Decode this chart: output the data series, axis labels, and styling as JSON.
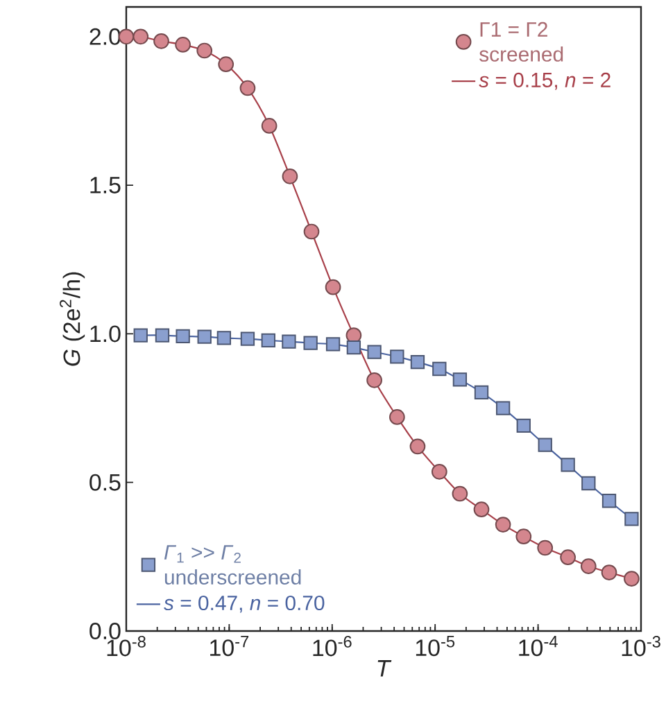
{
  "chart_data": {
    "type": "scatter",
    "xlabel": "*T*",
    "ylabel": "*G* (2e$^{2}$/h)",
    "log": "x",
    "xlim": [
      1e-08,
      0.001
    ],
    "ylim": [
      0,
      2.1
    ],
    "xticks": [
      {
        "value": 1e-08,
        "label": "10$^{-8}$"
      },
      {
        "value": 1e-07,
        "label": "10$^{-7}$"
      },
      {
        "value": 1e-06,
        "label": "10$^{-6}$"
      },
      {
        "value": 1e-05,
        "label": "10$^{-5}$"
      },
      {
        "value": 0.0001,
        "label": "10$^{-4}$"
      },
      {
        "value": 0.001,
        "label": "10$^{-3}$"
      }
    ],
    "yticks": [
      {
        "value": 0,
        "label": "0.0"
      },
      {
        "value": 0.5,
        "label": "0.5"
      },
      {
        "value": 1,
        "label": "1.0"
      },
      {
        "value": 1.5,
        "label": "1.5"
      },
      {
        "value": 2,
        "label": "2.0"
      }
    ],
    "legend": "top right",
    "grid": false,
    "series": [
      {
        "name": "Γ1 = Γ2 screened",
        "marker": "circle",
        "color": "#d4868e",
        "x": [
          1e-08,
          1.38e-08,
          2.19e-08,
          3.55e-08,
          5.75e-08,
          9.3e-08,
          1.51e-07,
          2.45e-07,
          3.89e-07,
          6.3e-07,
          1.02e-06,
          1.62e-06,
          2.57e-06,
          4.27e-06,
          6.76e-06,
          1.1e-05,
          1.74e-05,
          2.82e-05,
          4.57e-05,
          7.24e-05,
          0.000117,
          0.000195,
          0.000309,
          0.00049,
          0.00081
        ],
        "values": [
          2.0,
          2.0,
          1.985,
          1.973,
          1.953,
          1.907,
          1.827,
          1.7,
          1.53,
          1.344,
          1.157,
          0.995,
          0.844,
          0.72,
          0.621,
          0.536,
          0.462,
          0.409,
          0.358,
          0.318,
          0.28,
          0.248,
          0.218,
          0.197,
          0.176
        ]
      },
      {
        "name": "*s* = 0.15, *n* = 2",
        "type": "line",
        "marker": "none",
        "color": "#a8404a",
        "x": [
          1e-08,
          1.38e-08,
          2.19e-08,
          3.55e-08,
          5.75e-08,
          9.3e-08,
          1.51e-07,
          2.45e-07,
          3.89e-07,
          6.3e-07,
          1.02e-06,
          1.62e-06,
          2.57e-06,
          4.27e-06,
          6.76e-06,
          1.1e-05,
          1.74e-05,
          2.82e-05,
          4.57e-05,
          7.24e-05,
          0.000117,
          0.000195,
          0.000309,
          0.00049,
          0.00081
        ],
        "values": [
          2.0,
          2.0,
          1.985,
          1.973,
          1.953,
          1.907,
          1.827,
          1.7,
          1.53,
          1.344,
          1.157,
          0.995,
          0.844,
          0.72,
          0.621,
          0.536,
          0.462,
          0.409,
          0.358,
          0.318,
          0.28,
          0.248,
          0.218,
          0.197,
          0.176
        ]
      },
      {
        "name": "*Γ*$_{1}$ >> *Γ*$_{2}$ underscreened",
        "marker": "square",
        "color": "#8a9fcf",
        "x": [
          1.38e-08,
          2.24e-08,
          3.55e-08,
          5.75e-08,
          8.9e-08,
          1.51e-07,
          2.4e-07,
          3.8e-07,
          6.17e-07,
          1.02e-06,
          1.62e-06,
          2.57e-06,
          4.27e-06,
          6.76e-06,
          1.1e-05,
          1.74e-05,
          2.82e-05,
          4.57e-05,
          7.24e-05,
          0.000117,
          0.000195,
          0.000309,
          0.00049,
          0.00081
        ],
        "values": [
          0.995,
          0.995,
          0.992,
          0.99,
          0.986,
          0.983,
          0.978,
          0.974,
          0.969,
          0.965,
          0.954,
          0.939,
          0.923,
          0.905,
          0.882,
          0.846,
          0.803,
          0.75,
          0.691,
          0.626,
          0.559,
          0.497,
          0.438,
          0.377
        ]
      },
      {
        "name": "*s* = 0.47, *n* = 0.70",
        "type": "line",
        "marker": "none",
        "color": "#4a63a0",
        "x": [
          1.38e-08,
          2.24e-08,
          3.55e-08,
          5.75e-08,
          8.9e-08,
          1.51e-07,
          2.4e-07,
          3.8e-07,
          6.17e-07,
          1.02e-06,
          1.62e-06,
          2.57e-06,
          4.27e-06,
          6.76e-06,
          1.1e-05,
          1.74e-05,
          2.82e-05,
          4.57e-05,
          7.24e-05,
          0.000117,
          0.000195,
          0.000309,
          0.00049,
          0.00081
        ],
        "values": [
          0.995,
          0.995,
          0.992,
          0.99,
          0.986,
          0.983,
          0.978,
          0.974,
          0.969,
          0.965,
          0.954,
          0.939,
          0.923,
          0.905,
          0.882,
          0.846,
          0.803,
          0.75,
          0.691,
          0.626,
          0.559,
          0.497,
          0.438,
          0.377
        ]
      }
    ]
  }
}
